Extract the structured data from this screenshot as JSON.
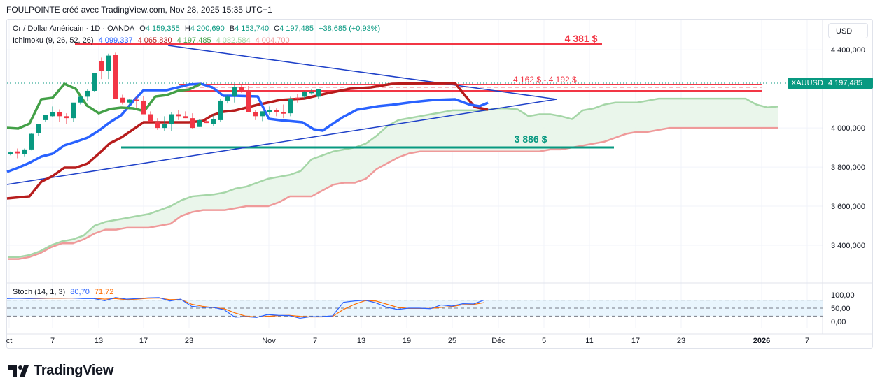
{
  "caption": "FOULPOINTE créé avec TradingView.com, Nov 28, 2025 15:35 UTC+1",
  "header": {
    "symbol": "Or / Dollar Américain · 1D · OANDA",
    "o_label": "O",
    "o_value": "4 159,355",
    "h_label": "H",
    "h_value": "4 200,690",
    "b_label": "B",
    "b_value": "4 153,740",
    "c_label": "C",
    "c_value": "4 197,485",
    "change": "+38,685 (+0,93%)"
  },
  "ichimoku": {
    "label": "Ichimoku (9, 26, 52, 26)",
    "values": [
      "4 099,337",
      "4 065,830",
      "4 197,485",
      "4 082,584",
      "4 004,700"
    ],
    "colors": [
      "#2962ff",
      "#b71c1c",
      "#43a047",
      "#a5d6a7",
      "#ef9a9a"
    ]
  },
  "stoch": {
    "label": "Stoch (14, 1, 3)",
    "k": "80,70",
    "d": "71,72"
  },
  "currency_button": "USD",
  "price_tag": {
    "symbol": "XAUUSD",
    "value": "4 197,485"
  },
  "logo_text": "TradingView",
  "colors": {
    "up": "#089981",
    "down": "#f23645",
    "tenkan": "#2962ff",
    "kijun": "#b71c1c",
    "chikou": "#43a047",
    "spanA": "#a5d6a7",
    "spanB": "#ef9a9a",
    "trend": "#1e40c8",
    "stochK": "#2962ff",
    "stochD": "#ff6d00"
  },
  "chart_data": {
    "type": "candlestick",
    "title": "Or / Dollar Américain · 1D · OANDA",
    "y_ticks": [
      "4 400,000",
      "4 000,000",
      "3 800,000",
      "3 600,000",
      "3 400,000"
    ],
    "y_tick_values": [
      4400,
      4000,
      3800,
      3600,
      3400
    ],
    "ylim": [
      3300,
      4460
    ],
    "x_ticks": [
      "ct",
      "7",
      "13",
      "17",
      "23",
      "Nov",
      "7",
      "13",
      "19",
      "25",
      "Déc",
      "5",
      "11",
      "17",
      "23",
      "2026",
      "7"
    ],
    "stoch_ticks": [
      "100,00",
      "50,00",
      "0,00"
    ],
    "annotations": [
      {
        "text": "4 381 $",
        "value": 4381,
        "color": "#f23645"
      },
      {
        "text": "4 162 $ - 4 192 $.",
        "value_low": 4162,
        "value_high": 4192,
        "color": "#f23645"
      },
      {
        "text": "3 886 $",
        "value": 3886,
        "color": "#089981"
      }
    ],
    "candles": [
      [
        3870,
        3880,
        3860,
        3875
      ],
      [
        3880,
        3895,
        3845,
        3870
      ],
      [
        3865,
        3895,
        3855,
        3890
      ],
      [
        3890,
        3975,
        3885,
        3970
      ],
      [
        3975,
        4000,
        3960,
        4020
      ],
      [
        4040,
        4060,
        4030,
        4065
      ],
      [
        4060,
        4110,
        4055,
        4080
      ],
      [
        4080,
        4095,
        4030,
        4060
      ],
      [
        4060,
        4075,
        4020,
        4050
      ],
      [
        4050,
        4075,
        4030,
        4130
      ],
      [
        4130,
        4165,
        4120,
        4160
      ],
      [
        4160,
        4200,
        4140,
        4190
      ],
      [
        4190,
        4275,
        4185,
        4280
      ],
      [
        4340,
        4360,
        4250,
        4290
      ],
      [
        4290,
        4380,
        4250,
        4370
      ],
      [
        4375,
        4385,
        4150,
        4150
      ],
      [
        4155,
        4170,
        4120,
        4130
      ],
      [
        4130,
        4150,
        4095,
        4145
      ],
      [
        4145,
        4160,
        4100,
        4140
      ],
      [
        4140,
        4165,
        4070,
        4070
      ],
      [
        4070,
        4085,
        4030,
        4030
      ],
      [
        4030,
        4050,
        3990,
        4000
      ],
      [
        4000,
        4060,
        3985,
        4020
      ],
      [
        4020,
        4080,
        3985,
        4070
      ],
      [
        4070,
        4090,
        4040,
        4060
      ],
      [
        4060,
        4085,
        4050,
        4050
      ],
      [
        4050,
        4075,
        3995,
        4000
      ],
      [
        4005,
        4045,
        4005,
        4040
      ],
      [
        4035,
        4050,
        4025,
        4025
      ],
      [
        4020,
        4070,
        4010,
        4045
      ],
      [
        4040,
        4150,
        4030,
        4140
      ],
      [
        4140,
        4170,
        4125,
        4160
      ],
      [
        4165,
        4225,
        4130,
        4210
      ],
      [
        4210,
        4225,
        4180,
        4190
      ],
      [
        4190,
        4215,
        4080,
        4080
      ],
      [
        4080,
        4090,
        4040,
        4060
      ],
      [
        4060,
        4085,
        4035,
        4085
      ],
      [
        4080,
        4110,
        4065,
        4090
      ],
      [
        4090,
        4100,
        4060,
        4080
      ],
      [
        4080,
        4120,
        4050,
        4075
      ],
      [
        4075,
        4160,
        4060,
        4150
      ],
      [
        4155,
        4175,
        4130,
        4150
      ],
      [
        4160,
        4190,
        4150,
        4185
      ],
      [
        4185,
        4200,
        4170,
        4185
      ],
      [
        4160,
        4200,
        4150,
        4200
      ]
    ],
    "stoch_k": [
      86,
      87,
      86,
      87,
      88,
      88,
      88,
      86,
      86,
      78,
      90,
      84,
      86,
      89,
      90,
      77,
      84,
      57,
      53,
      53,
      44,
      16,
      18,
      15,
      26,
      23,
      22,
      12,
      18,
      18,
      21,
      72,
      77,
      80,
      70,
      53,
      45,
      50,
      50,
      48,
      62,
      58,
      67,
      66,
      81
    ],
    "stoch_d": [
      88,
      87,
      86,
      86,
      87,
      87,
      88,
      87,
      87,
      84,
      86,
      82,
      84,
      87,
      88,
      82,
      83,
      65,
      57,
      52,
      48,
      32,
      20,
      17,
      19,
      22,
      23,
      19,
      17,
      17,
      19,
      45,
      64,
      78,
      77,
      65,
      53,
      49,
      49,
      49,
      53,
      56,
      63,
      64,
      71
    ]
  }
}
